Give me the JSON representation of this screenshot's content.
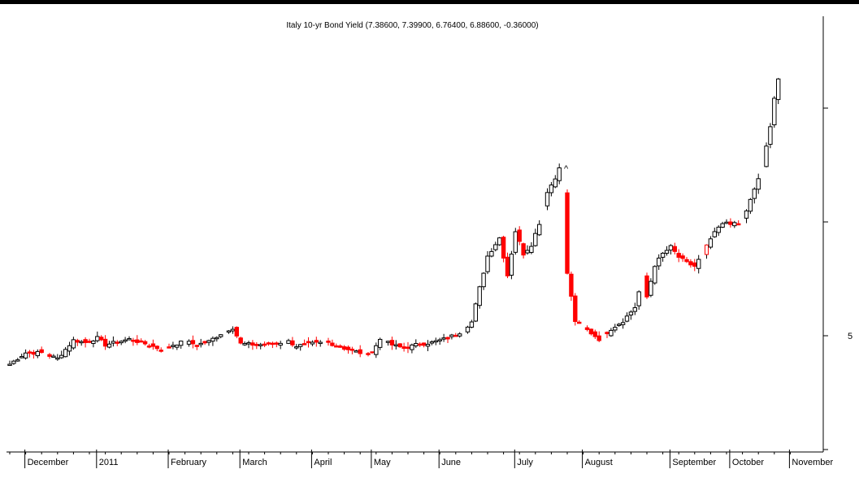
{
  "chart_data": {
    "type": "candlestick",
    "title": "Italy 10-yr Bond Yield (7.38600, 7.39900, 6.76400, 6.88600, -0.36000)",
    "xlabel": "",
    "ylabel": "",
    "y_ticks": [
      {
        "value": 5,
        "label": "5"
      }
    ],
    "ylim": [
      3.95,
      7.5
    ],
    "months": [
      "December",
      "2011",
      "February",
      "March",
      "April",
      "May",
      "June",
      "July",
      "August",
      "September",
      "October",
      "November"
    ],
    "up_color": "#ffffff",
    "down_color": "#ff0000",
    "outline_color": "#000000",
    "annotation": {
      "text": "^",
      "month_index": 8,
      "value": 6.53
    },
    "anchors": [
      [
        0,
        4.75
      ],
      [
        4,
        4.85
      ],
      [
        8,
        4.85
      ],
      [
        12,
        4.8
      ],
      [
        16,
        4.96
      ],
      [
        19,
        4.94
      ],
      [
        22,
        4.98
      ],
      [
        24,
        4.92
      ],
      [
        30,
        4.97
      ],
      [
        34,
        4.93
      ],
      [
        38,
        4.88
      ],
      [
        41,
        4.92
      ],
      [
        44,
        4.95
      ],
      [
        47,
        4.92
      ],
      [
        50,
        4.95
      ],
      [
        54,
        5.04
      ],
      [
        56,
        5.07
      ],
      [
        58,
        4.93
      ],
      [
        62,
        4.92
      ],
      [
        66,
        4.93
      ],
      [
        70,
        4.95
      ],
      [
        72,
        4.91
      ],
      [
        76,
        4.93
      ],
      [
        80,
        4.94
      ],
      [
        84,
        4.89
      ],
      [
        88,
        4.85
      ],
      [
        91,
        4.85
      ],
      [
        93,
        4.97
      ],
      [
        96,
        4.92
      ],
      [
        99,
        4.89
      ],
      [
        102,
        4.92
      ],
      [
        106,
        4.94
      ],
      [
        110,
        4.98
      ],
      [
        113,
        5.03
      ],
      [
        116,
        5.12
      ],
      [
        118,
        5.42
      ],
      [
        120,
        5.7
      ],
      [
        123,
        5.86
      ],
      [
        125,
        5.53
      ],
      [
        127,
        5.92
      ],
      [
        129,
        5.72
      ],
      [
        131,
        5.8
      ],
      [
        133,
        5.99
      ],
      [
        135,
        6.27
      ],
      [
        137,
        6.38
      ],
      [
        138,
        6.49
      ],
      [
        139,
        6.26
      ],
      [
        140,
        5.55
      ],
      [
        142,
        5.13
      ],
      [
        145,
        5.05
      ],
      [
        148,
        4.97
      ],
      [
        151,
        5.06
      ],
      [
        154,
        5.13
      ],
      [
        157,
        5.25
      ],
      [
        159,
        5.52
      ],
      [
        160,
        5.34
      ],
      [
        162,
        5.62
      ],
      [
        164,
        5.72
      ],
      [
        166,
        5.78
      ],
      [
        168,
        5.69
      ],
      [
        170,
        5.64
      ],
      [
        172,
        5.61
      ],
      [
        174,
        5.72
      ],
      [
        176,
        5.85
      ],
      [
        178,
        5.95
      ],
      [
        180,
        6.0
      ],
      [
        182,
        5.98
      ],
      [
        183,
        5.98
      ],
      [
        185,
        6.1
      ],
      [
        187,
        6.28
      ],
      [
        189,
        6.48
      ],
      [
        191,
        6.83
      ],
      [
        192,
        7.1
      ],
      [
        193,
        7.26
      ],
      [
        194,
        6.95
      ]
    ],
    "special_candles": [
      {
        "day": 91,
        "kind": "doji-dash"
      },
      {
        "day": 175,
        "kind": "hollow-red"
      }
    ]
  }
}
